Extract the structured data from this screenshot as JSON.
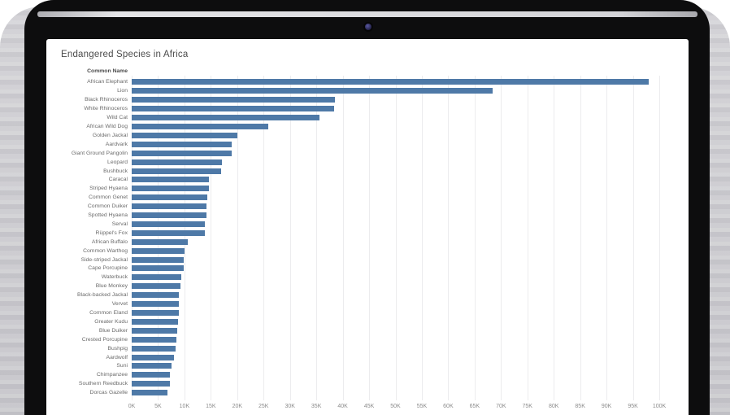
{
  "device": {
    "type": "laptop-mockup",
    "webcam": "webcam-dot"
  },
  "chart_data": {
    "type": "bar",
    "orientation": "horizontal",
    "title": "Endangered Species in Africa",
    "category_header": "Common Name",
    "xlabel": "",
    "ylabel": "Common Name",
    "xlim": [
      0,
      100000
    ],
    "grid": true,
    "legend": "none",
    "bar_color": "#4e79a7",
    "x_ticks": [
      "0K",
      "5K",
      "10K",
      "15K",
      "20K",
      "25K",
      "30K",
      "35K",
      "40K",
      "45K",
      "50K",
      "55K",
      "60K",
      "65K",
      "70K",
      "75K",
      "80K",
      "85K",
      "90K",
      "95K",
      "100K"
    ],
    "categories": [
      "African Elephant",
      "Lion",
      "Black Rhinoceros",
      "White Rhinoceros",
      "Wild Cat",
      "African Wild Dog",
      "Golden Jackal",
      "Aardvark",
      "Giant Ground Pangolin",
      "Leopard",
      "Bushbuck",
      "Caracal",
      "Striped Hyaena",
      "Common Genet",
      "Common Duiker",
      "Spotted Hyaena",
      "Serval",
      "Rüppel's Fox",
      "African Buffalo",
      "Common Warthog",
      "Side-striped Jackal",
      "Cape Porcupine",
      "Waterbuck",
      "Blue Monkey",
      "Black-backed Jackal",
      "Vervet",
      "Common Eland",
      "Greater Kudu",
      "Blue Duiker",
      "Crested Porcupine",
      "Bushpig",
      "Aardwolf",
      "Suni",
      "Chimpanzee",
      "Southern Reedbuck",
      "Dorcas Gazelle"
    ],
    "values": [
      98000,
      68400,
      38500,
      38300,
      35600,
      25900,
      20000,
      19000,
      18900,
      17100,
      16900,
      14600,
      14600,
      14300,
      14200,
      14200,
      13900,
      13800,
      10600,
      10000,
      9900,
      9800,
      9400,
      9200,
      9000,
      8900,
      8900,
      8800,
      8600,
      8500,
      8300,
      8000,
      7500,
      7200,
      7200,
      6800
    ]
  }
}
